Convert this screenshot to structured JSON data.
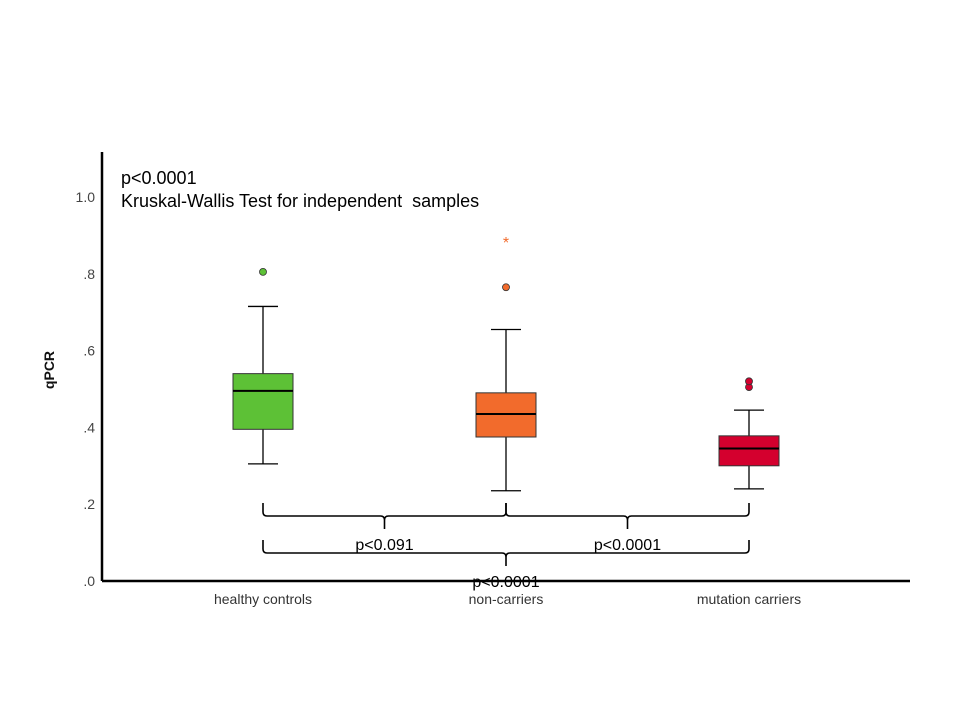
{
  "chart_data": {
    "type": "box",
    "ylabel": "qPCR",
    "ylim": [
      0,
      1.1
    ],
    "yticks": [
      {
        "value": 0.0,
        "label": ".0"
      },
      {
        "value": 0.2,
        "label": ".2"
      },
      {
        "value": 0.4,
        "label": ".4"
      },
      {
        "value": 0.6,
        "label": ".6"
      },
      {
        "value": 0.8,
        "label": ".8"
      },
      {
        "value": 1.0,
        "label": "1.0"
      }
    ],
    "grid": false,
    "categories": [
      "healthy controls",
      "non-carriers",
      "mutation carriers"
    ],
    "boxes": [
      {
        "whisker_low": 0.305,
        "q1": 0.395,
        "median": 0.495,
        "q3": 0.54,
        "whisker_high": 0.715,
        "color": "#5dc136",
        "outliers": [
          0.805
        ],
        "extremes": []
      },
      {
        "whisker_low": 0.235,
        "q1": 0.375,
        "median": 0.435,
        "q3": 0.49,
        "whisker_high": 0.655,
        "color": "#f26b2c",
        "outliers": [
          0.765
        ],
        "extremes": [
          0.89
        ]
      },
      {
        "whisker_low": 0.24,
        "q1": 0.3,
        "median": 0.345,
        "q3": 0.378,
        "whisker_high": 0.445,
        "color": "#d4002e",
        "outliers": [
          0.505,
          0.52
        ],
        "extremes": []
      }
    ],
    "annotations": {
      "overall_p": "p<0.0001",
      "test_name": "Kruskal-Wallis Test for independent  samples"
    },
    "comparisons": [
      {
        "from": 0,
        "to": 1,
        "label": "p<0.091",
        "level": 1
      },
      {
        "from": 1,
        "to": 2,
        "label": "p<0.0001",
        "level": 1
      },
      {
        "from": 0,
        "to": 2,
        "label": "p<0.0001",
        "level": 2
      }
    ],
    "extreme_marker": "*"
  }
}
